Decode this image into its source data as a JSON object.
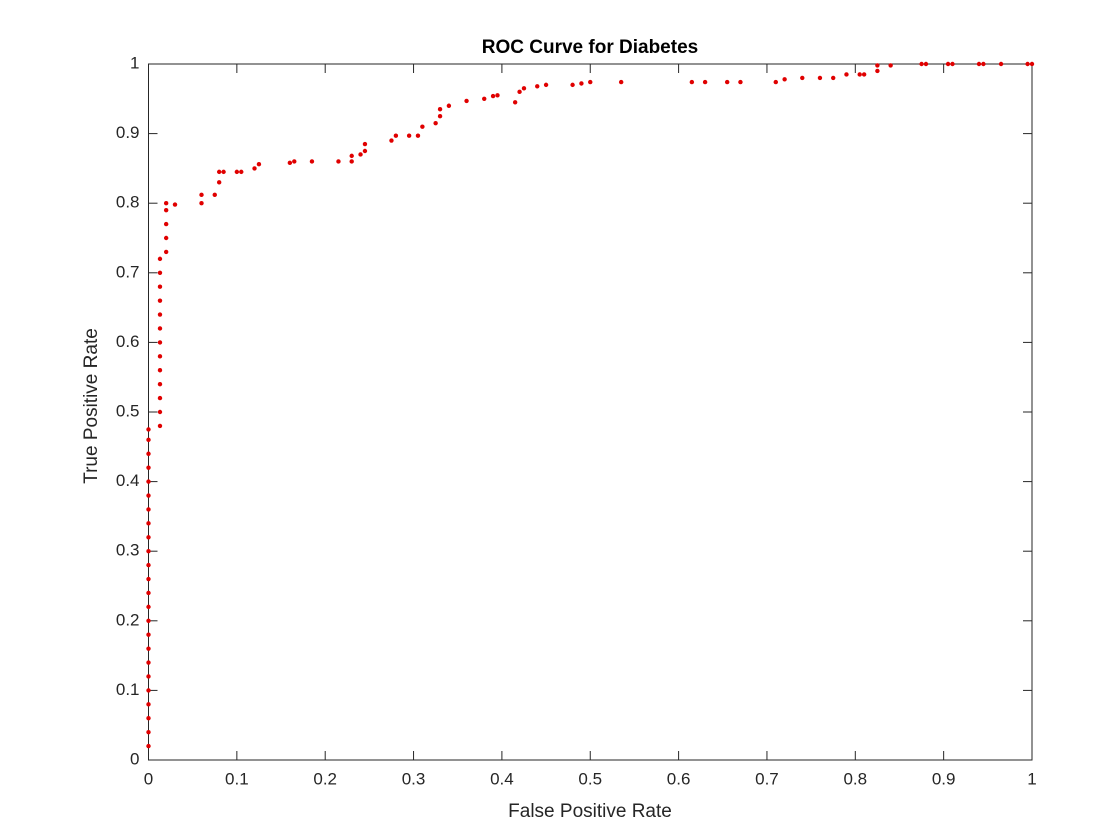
{
  "chart_data": {
    "type": "scatter",
    "title": "ROC Curve for Diabetes",
    "x_label": "False Positive Rate",
    "y_label": "True Positive Rate",
    "color": "#e00000",
    "xlim": [
      0,
      1
    ],
    "ylim": [
      0,
      1
    ],
    "xticks": [
      0,
      0.1,
      0.2,
      0.3,
      0.4,
      0.5,
      0.6,
      0.7,
      0.8,
      0.9,
      1
    ],
    "yticks": [
      0,
      0.1,
      0.2,
      0.3,
      0.4,
      0.5,
      0.6,
      0.7,
      0.8,
      0.9,
      1
    ],
    "grid": false,
    "x": [
      0,
      0,
      0,
      0,
      0,
      0,
      0,
      0,
      0,
      0,
      0,
      0,
      0,
      0,
      0,
      0,
      0,
      0,
      0,
      0,
      0,
      0,
      0,
      0,
      0.013,
      0.013,
      0.013,
      0.013,
      0.013,
      0.013,
      0.013,
      0.013,
      0.013,
      0.013,
      0.013,
      0.013,
      0.013,
      0.02,
      0.02,
      0.02,
      0.02,
      0.02,
      0.03,
      0.06,
      0.06,
      0.075,
      0.08,
      0.08,
      0.085,
      0.1,
      0.105,
      0.12,
      0.125,
      0.16,
      0.165,
      0.185,
      0.215,
      0.23,
      0.23,
      0.24,
      0.245,
      0.245,
      0.275,
      0.28,
      0.295,
      0.305,
      0.31,
      0.325,
      0.33,
      0.33,
      0.34,
      0.36,
      0.38,
      0.39,
      0.395,
      0.415,
      0.42,
      0.425,
      0.44,
      0.45,
      0.48,
      0.49,
      0.5,
      0.535,
      0.615,
      0.63,
      0.655,
      0.67,
      0.71,
      0.72,
      0.74,
      0.76,
      0.775,
      0.79,
      0.805,
      0.81,
      0.825,
      0.825,
      0.84,
      0.875,
      0.88,
      0.905,
      0.91,
      0.94,
      0.945,
      0.965,
      0.995,
      1
    ],
    "values": [
      0.02,
      0.04,
      0.06,
      0.08,
      0.1,
      0.12,
      0.14,
      0.16,
      0.18,
      0.2,
      0.22,
      0.24,
      0.26,
      0.28,
      0.3,
      0.32,
      0.34,
      0.36,
      0.38,
      0.4,
      0.42,
      0.44,
      0.46,
      0.475,
      0.48,
      0.5,
      0.52,
      0.54,
      0.56,
      0.58,
      0.6,
      0.62,
      0.64,
      0.66,
      0.68,
      0.7,
      0.72,
      0.73,
      0.75,
      0.77,
      0.79,
      0.8,
      0.798,
      0.8,
      0.812,
      0.812,
      0.83,
      0.845,
      0.845,
      0.845,
      0.845,
      0.85,
      0.856,
      0.858,
      0.86,
      0.86,
      0.86,
      0.86,
      0.868,
      0.87,
      0.875,
      0.885,
      0.89,
      0.897,
      0.897,
      0.897,
      0.91,
      0.915,
      0.925,
      0.935,
      0.94,
      0.947,
      0.95,
      0.954,
      0.955,
      0.945,
      0.96,
      0.965,
      0.968,
      0.97,
      0.97,
      0.972,
      0.974,
      0.974,
      0.974,
      0.974,
      0.974,
      0.974,
      0.974,
      0.978,
      0.98,
      0.98,
      0.98,
      0.985,
      0.985,
      0.985,
      0.99,
      0.998,
      0.998,
      1,
      1,
      1,
      1,
      1,
      1,
      1,
      1,
      1
    ]
  }
}
